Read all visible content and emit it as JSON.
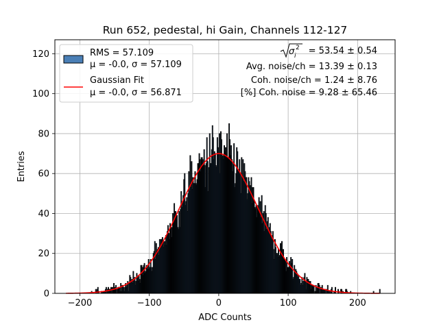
{
  "chart_data": {
    "type": "histogram",
    "title": "Run 652, pedestal, hi Gain, Channels 112-127",
    "xlabel": "ADC Counts",
    "ylabel": "Entries",
    "xlim": [
      -236,
      254
    ],
    "ylim": [
      0,
      127
    ],
    "xticks": [
      -200,
      -100,
      0,
      100,
      200
    ],
    "yticks": [
      0,
      20,
      40,
      60,
      80,
      100,
      120
    ],
    "grid": true,
    "legend_position": "top-left",
    "histogram": {
      "name_line1": "RMS = 57.109",
      "name_line2": "μ = -0.0, σ = 57.109",
      "rms": 57.109,
      "mean": 0.0,
      "sigma": 57.109,
      "range": [
        -220,
        232
      ],
      "bin_width": 1,
      "face_color": "#4a7fb6",
      "edge_color": "#000000"
    },
    "gaussian_fit": {
      "name": "Gaussian Fit",
      "params_line": "μ = -0.0, σ = 56.871",
      "mean": 0.0,
      "sigma": 56.871,
      "amplitude": 70,
      "color": "#ff0000"
    },
    "annotations": {
      "sigma_label": "= 53.54 ± 0.54",
      "avg_noise": "Avg. noise/ch = 13.39 ± 0.13",
      "coh_noise": "Coh. noise/ch = 1.24 ± 8.76",
      "coh_percent": "[%] Coh. noise = 9.28 ± 65.46"
    }
  }
}
